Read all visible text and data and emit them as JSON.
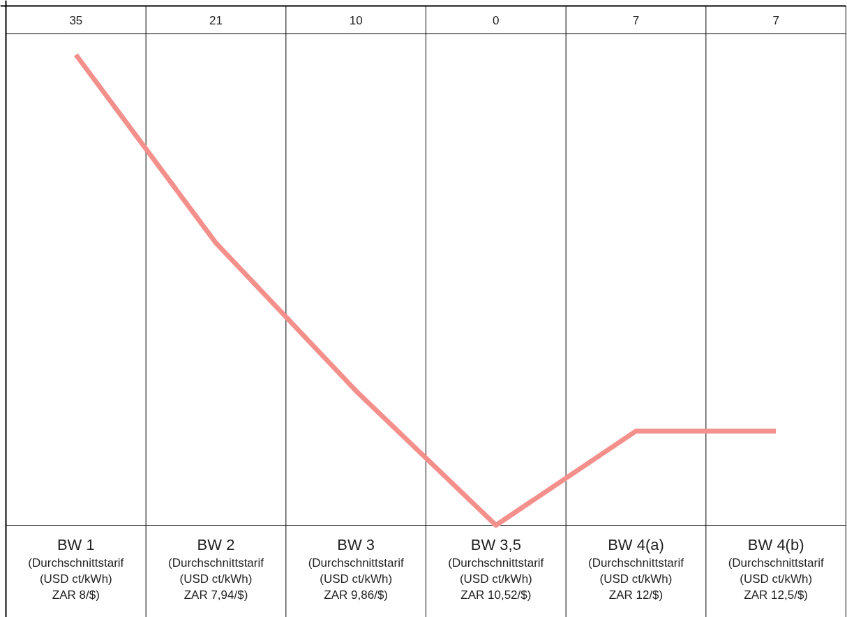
{
  "chart_data": {
    "type": "line",
    "categories": [
      "BW 1\n(Durchschnittstarif\n(USD ct/kWh)\nZAR 8/$)",
      "BW 2\n(Durchschnittstarif\n(USD ct/kWh)\nZAR 7,94/$)",
      "BW 3\n(Durchschnittstarif\n(USD ct/kWh)\nZAR 9,86/$)",
      "BW 3,5\n(Durchschnittstarif\n(USD ct/kWh)\nZAR 10,52/$)",
      "BW 4(a)\n(Durchschnittstarif\n(USD ct/kWh)\nZAR 12/$)",
      "BW 4(b)\n(Durchschnittstarif\n(USD ct/kWh)\nZAR 12,5/$)"
    ],
    "series": [
      {
        "color": "#f4908c",
        "values": [
          35,
          21,
          10,
          0,
          7,
          7
        ]
      }
    ],
    "data_labels": true,
    "grid": false,
    "marker": "none",
    "line_style": "solid"
  }
}
